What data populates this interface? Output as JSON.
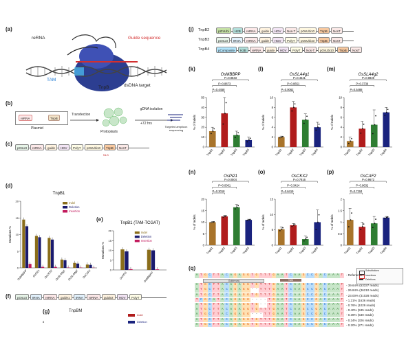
{
  "panel_letters": [
    "(a)",
    "(b)",
    "(c)",
    "(d)",
    "(e)",
    "(f)",
    "(g)",
    "(j)",
    "(k)",
    "(l)",
    "(m)",
    "(n)",
    "(o)",
    "(p)",
    "(q)"
  ],
  "a": {
    "rerna": "reRNA",
    "guide": "Guide sequence",
    "tam": "TAM",
    "tnpb": "TnpB",
    "dsdna": "dsDNA target"
  },
  "b": {
    "rerna": "reRNA",
    "tnpb": "TnpB",
    "plasmid": "Plasmid",
    "transfection": "Transfection",
    "protoplasts": "Protoplasts",
    "gdna": "gDNA isolation",
    "hrs": "+72 hrs",
    "targeted": "Targeted amplicon sequencing"
  },
  "c": {
    "construct": [
      "pOsU3",
      "reRNA",
      "guide",
      "HDV",
      "PolyT",
      "pOsUbi10",
      "TnpB",
      "NosT"
    ],
    "nls": "NLS"
  },
  "d": {
    "title": "TnpB1",
    "ylabel": "Mutations %",
    "legend": [
      "Indel",
      "Deletion",
      "Insertion"
    ]
  },
  "e": {
    "title": "TnpB1 (TAM-TCGAT)",
    "ylabel": "Mutations %",
    "legend": [
      "Indel",
      "Deletion",
      "Insertion"
    ],
    "categories": [
      "OsPDS",
      "OsMBBPP"
    ]
  },
  "f": {
    "construct": [
      "pOsU3",
      "tRNA",
      "reRNA",
      "guide1",
      "tRNA",
      "reRNA",
      "guide2",
      "HDV",
      "PolyT"
    ]
  },
  "g": {
    "title": "TnpBM",
    "legend": [
      "Indel",
      "Deletion"
    ],
    "tick": "8"
  },
  "j": {
    "rows": [
      {
        "label": "TnpB2",
        "parts": [
          "pZmUbi",
          "H2B",
          "reRNA",
          "guide",
          "HDV",
          "Nos-T",
          "pOsUbi10",
          "TnpB",
          "NosT"
        ]
      },
      {
        "label": "TnpB3",
        "parts": [
          "pOsU3",
          "tRNA",
          "reRNA",
          "guide",
          "HDV",
          "PolyT",
          "pOsUbi10",
          "TnpB",
          "NosT"
        ]
      },
      {
        "label": "TnpB4",
        "parts": [
          "pComposite",
          "H2B",
          "reRNA",
          "guide",
          "HDV",
          "PolyT",
          "Nos-T",
          "pOsUbi10",
          "TnpB",
          "NosT"
        ]
      }
    ]
  },
  "q": {
    "reference": "ATGCTTACAGAGGTGTTTGAATCAAGCCGACAAAT",
    "ref_label": "Reference",
    "legend": [
      "Substitutions",
      "Insertions",
      "Deletions"
    ],
    "guide_label": "Guide seq",
    "tam_label": "TAM",
    "reads": [
      {
        "seq": "ATGCTTACAGAGGTGTTTGAATCAAGCCGACAAAT",
        "pct": "39.64% (53337 reads)"
      },
      {
        "seq": "ATGCTTACAGAGG--TTTGAATCAAGCCGACAAAT",
        "pct": "26.84% (36210 reads)"
      },
      {
        "seq": "ATGCTTACAGAGGTGTTTGAATCAAGCCGACAAAT",
        "pct": "23.00% (31028 reads)"
      },
      {
        "seq": "TCGCATACAGAGG----TGAATCAAGCCGACAAAT",
        "pct": "1.21% (1636 reads)"
      },
      {
        "seq": "ATGCTTACAGAGGTG--TGAATCAAGCCGACAAAT",
        "pct": "0.76% (1029 reads)"
      },
      {
        "seq": "ATGCTTACAGAGGTGTTTGAATCAAGCCGACAAAT",
        "pct": "0.40% (535 reads)"
      },
      {
        "seq": "ATGCTTACAGAGG---TTGAATCAAGCCGACAAAT",
        "pct": "0.39% (530 reads)"
      },
      {
        "seq": "ATGCTTACAGAGGTGTTTGAATCAAGCCGACAAAT",
        "pct": "0.24% (326 reads)"
      },
      {
        "seq": "ATGCTTACAGAGGTGTTTGAATCAAGCCGACAAAT",
        "pct": "0.20% (271 reads)"
      }
    ]
  },
  "colors": {
    "tnpb1": "#a8742b",
    "tnpb2": "#b01c1c",
    "tnpb3": "#2e7d32",
    "tnpb4": "#1a237e",
    "indel": "#7b1fa2",
    "deletion": "#1a237e",
    "insertion": "#c2185b",
    "dbar_indel": "#8a6d1a",
    "dbar_del": "#1a1a6e",
    "dbar_ins": "#c2185b"
  },
  "chart_data": [
    {
      "panel": "d",
      "type": "bar",
      "title": "TnpB1",
      "ylabel": "Mutations %",
      "categories": [
        "OsMBBPP",
        "OsPi21",
        "OsCKX2",
        "OsSLA4g1",
        "OsSLA4g2",
        "OsCAF2"
      ],
      "ylim": [
        0,
        20
      ],
      "yticks": [
        0,
        5,
        10,
        15,
        20
      ],
      "series": [
        {
          "name": "Indel",
          "values": [
            14.5,
            9.6,
            9.0,
            2.5,
            1.5,
            1.0
          ]
        },
        {
          "name": "Deletion",
          "values": [
            12.5,
            9.2,
            8.5,
            2.3,
            1.3,
            0.9
          ]
        },
        {
          "name": "Insertion",
          "values": [
            1.2,
            0.3,
            0.3,
            0.1,
            0.1,
            0.05
          ]
        }
      ]
    },
    {
      "panel": "e",
      "type": "bar",
      "title": "TnpB1 (TAM-TCGAT)",
      "ylabel": "Mutations %",
      "categories": [
        "OsPDS",
        "OsMBBPP"
      ],
      "ylim": [
        0,
        20
      ],
      "yticks": [
        0,
        5,
        10,
        15,
        20
      ],
      "series": [
        {
          "name": "Indel",
          "values": [
            10.5,
            10.3
          ]
        },
        {
          "name": "Deletion",
          "values": [
            9.5,
            10.0
          ]
        },
        {
          "name": "Insertion",
          "values": [
            0.4,
            0.3
          ]
        }
      ]
    },
    {
      "panel": "k",
      "type": "bar",
      "title": "OsMBBPP",
      "ylabel": "% of Indels",
      "categories": [
        "TnpB1",
        "TnpB2",
        "TnpB3",
        "TnpB4"
      ],
      "values": [
        16,
        34,
        12,
        7
      ],
      "errors": [
        4,
        18,
        4,
        3
      ],
      "ylim": [
        0,
        50
      ],
      "yticks": [
        0,
        10,
        20,
        30,
        40,
        50
      ],
      "annotations": [
        "P=0.8843",
        "P=0.8873",
        "P=0.4458"
      ]
    },
    {
      "panel": "l",
      "type": "bar",
      "title": "OsSLA4g1",
      "ylabel": "% of Indels",
      "categories": [
        "TnpB1",
        "TnpB2",
        "TnpB3",
        "TnpB4"
      ],
      "values": [
        2,
        8,
        5.5,
        4
      ],
      "errors": [
        0.2,
        1.2,
        1.2,
        1
      ],
      "ylim": [
        0,
        10
      ],
      "yticks": [
        0,
        2,
        4,
        6,
        8,
        10
      ],
      "annotations": [
        "P=0.4541",
        "P=0.0651",
        "P=0.0062"
      ]
    },
    {
      "panel": "m",
      "type": "bar",
      "title": "OsSLA4g2",
      "ylabel": "% of Indels",
      "categories": [
        "TnpB1",
        "TnpB2",
        "TnpB3",
        "TnpB4"
      ],
      "values": [
        1.2,
        3.7,
        4.5,
        7
      ],
      "errors": [
        0.8,
        1.5,
        3,
        1
      ],
      "ylim": [
        0,
        10
      ],
      "yticks": [
        0,
        2,
        4,
        6,
        8,
        10
      ],
      "annotations": [
        "P=0.0849",
        "P=0.3739",
        "P=0.5488"
      ]
    },
    {
      "panel": "n",
      "type": "bar",
      "title": "OsPi21",
      "ylabel": "% of Indels",
      "categories": [
        "TnpB1",
        "TnpB2",
        "TnpB3",
        "TnpB4"
      ],
      "values": [
        10,
        12.5,
        16.5,
        11
      ],
      "errors": [
        0.3,
        0.5,
        1.2,
        0.3
      ],
      "ylim": [
        0,
        20
      ],
      "yticks": [
        0,
        5,
        10,
        15,
        20
      ],
      "annotations": [
        "P=0.0504",
        "P<0.0001",
        "P=0.3018"
      ]
    },
    {
      "panel": "o",
      "type": "bar",
      "title": "OsCKX2",
      "ylabel": "% of Indels",
      "categories": [
        "TnpB1",
        "TnpB2",
        "TnpB3",
        "TnpB4"
      ],
      "values": [
        5.2,
        6.5,
        2,
        7.5
      ],
      "errors": [
        0.8,
        0.6,
        1,
        4
      ],
      "ylim": [
        0,
        15
      ],
      "yticks": [
        0,
        5,
        10,
        15
      ],
      "annotations": [
        "P=0.7816",
        "P=0.3424",
        "P=0.6419"
      ]
    },
    {
      "panel": "p",
      "type": "bar",
      "title": "OsCAF2",
      "ylabel": "% of Indels",
      "categories": [
        "TnpB1",
        "TnpB2",
        "TnpB3",
        "TnpB4"
      ],
      "values": [
        1.1,
        0.8,
        0.95,
        1.2
      ],
      "errors": [
        0.5,
        0.2,
        0.3,
        0.05
      ],
      "ylim": [
        0,
        2.0
      ],
      "yticks": [
        0,
        0.5,
        1.0,
        1.5,
        2.0
      ],
      "annotations": [
        "P=0.9672",
        "P=0.9632",
        "P=0.7204"
      ]
    }
  ]
}
